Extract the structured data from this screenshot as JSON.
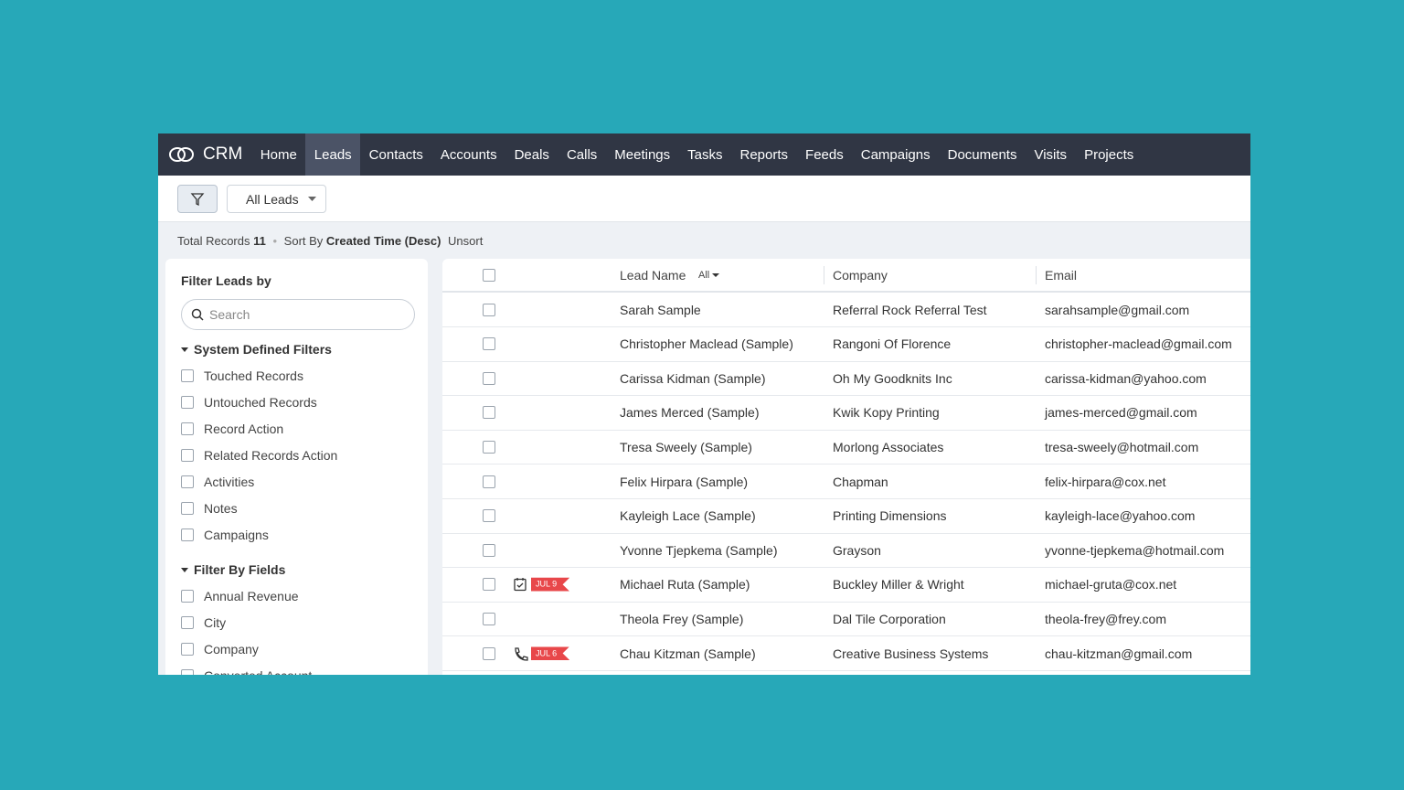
{
  "nav": {
    "brand": "CRM",
    "items": [
      "Home",
      "Leads",
      "Contacts",
      "Accounts",
      "Deals",
      "Calls",
      "Meetings",
      "Tasks",
      "Reports",
      "Feeds",
      "Campaigns",
      "Documents",
      "Visits",
      "Projects"
    ],
    "active": 1
  },
  "toolbar": {
    "view": "All Leads"
  },
  "info": {
    "total_label": "Total Records",
    "total": 11,
    "sort_label": "Sort By",
    "sort_value": "Created Time (Desc)",
    "unsort": "Unsort"
  },
  "filters": {
    "title": "Filter Leads by",
    "search_placeholder": "Search",
    "groups": [
      {
        "title": "System Defined Filters",
        "items": [
          "Touched Records",
          "Untouched Records",
          "Record Action",
          "Related Records Action",
          "Activities",
          "Notes",
          "Campaigns"
        ]
      },
      {
        "title": "Filter By Fields",
        "items": [
          "Annual Revenue",
          "City",
          "Company",
          "Converted Account"
        ]
      }
    ]
  },
  "table": {
    "columns": [
      "Lead Name",
      "Company",
      "Email"
    ],
    "lead_filter": "All",
    "rows": [
      {
        "name": "Sarah Sample",
        "company": "Referral Rock Referral Test",
        "email": "sarahsample@gmail.com"
      },
      {
        "name": "Christopher Maclead (Sample)",
        "company": "Rangoni Of Florence",
        "email": "christopher-maclead@gmail.com"
      },
      {
        "name": "Carissa Kidman (Sample)",
        "company": "Oh My Goodknits Inc",
        "email": "carissa-kidman@yahoo.com"
      },
      {
        "name": "James Merced (Sample)",
        "company": "Kwik Kopy Printing",
        "email": "james-merced@gmail.com"
      },
      {
        "name": "Tresa Sweely (Sample)",
        "company": "Morlong Associates",
        "email": "tresa-sweely@hotmail.com"
      },
      {
        "name": "Felix Hirpara (Sample)",
        "company": "Chapman",
        "email": "felix-hirpara@cox.net"
      },
      {
        "name": "Kayleigh Lace (Sample)",
        "company": "Printing Dimensions",
        "email": "kayleigh-lace@yahoo.com"
      },
      {
        "name": "Yvonne Tjepkema (Sample)",
        "company": "Grayson",
        "email": "yvonne-tjepkema@hotmail.com"
      },
      {
        "name": "Michael Ruta (Sample)",
        "company": "Buckley Miller & Wright",
        "email": "michael-gruta@cox.net",
        "activity": {
          "kind": "task",
          "label": "JUL 9"
        }
      },
      {
        "name": "Theola Frey (Sample)",
        "company": "Dal Tile Corporation",
        "email": "theola-frey@frey.com"
      },
      {
        "name": "Chau Kitzman (Sample)",
        "company": "Creative Business Systems",
        "email": "chau-kitzman@gmail.com",
        "activity": {
          "kind": "call",
          "label": "JUL 6"
        }
      }
    ]
  }
}
